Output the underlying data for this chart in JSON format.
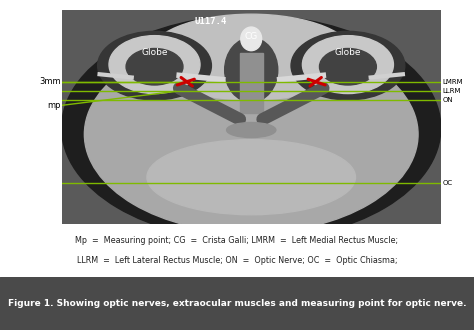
{
  "title": "Figure 1. Showing optic nerves, extraocular muscles and measuring point for optic nerve.",
  "caption_line1": "Mp  =  Measuring point; CG  =  Crista Galli; LMRM  =  Left Medial Rectus Muscle;",
  "caption_line2": "LLRM  =  Left Lateral Rectus Muscle; ON  =  Optic Nerve; OC  =  Optic Chiasma;",
  "mri_label": "U117.4",
  "bg_color": "#ffffff",
  "title_bg": "#4a4a4a",
  "title_color": "#ffffff",
  "caption_color": "#222222",
  "green_color": "#7fba00",
  "red_color": "#cc0000",
  "fig_width": 4.74,
  "fig_height": 3.3,
  "dpi": 100
}
